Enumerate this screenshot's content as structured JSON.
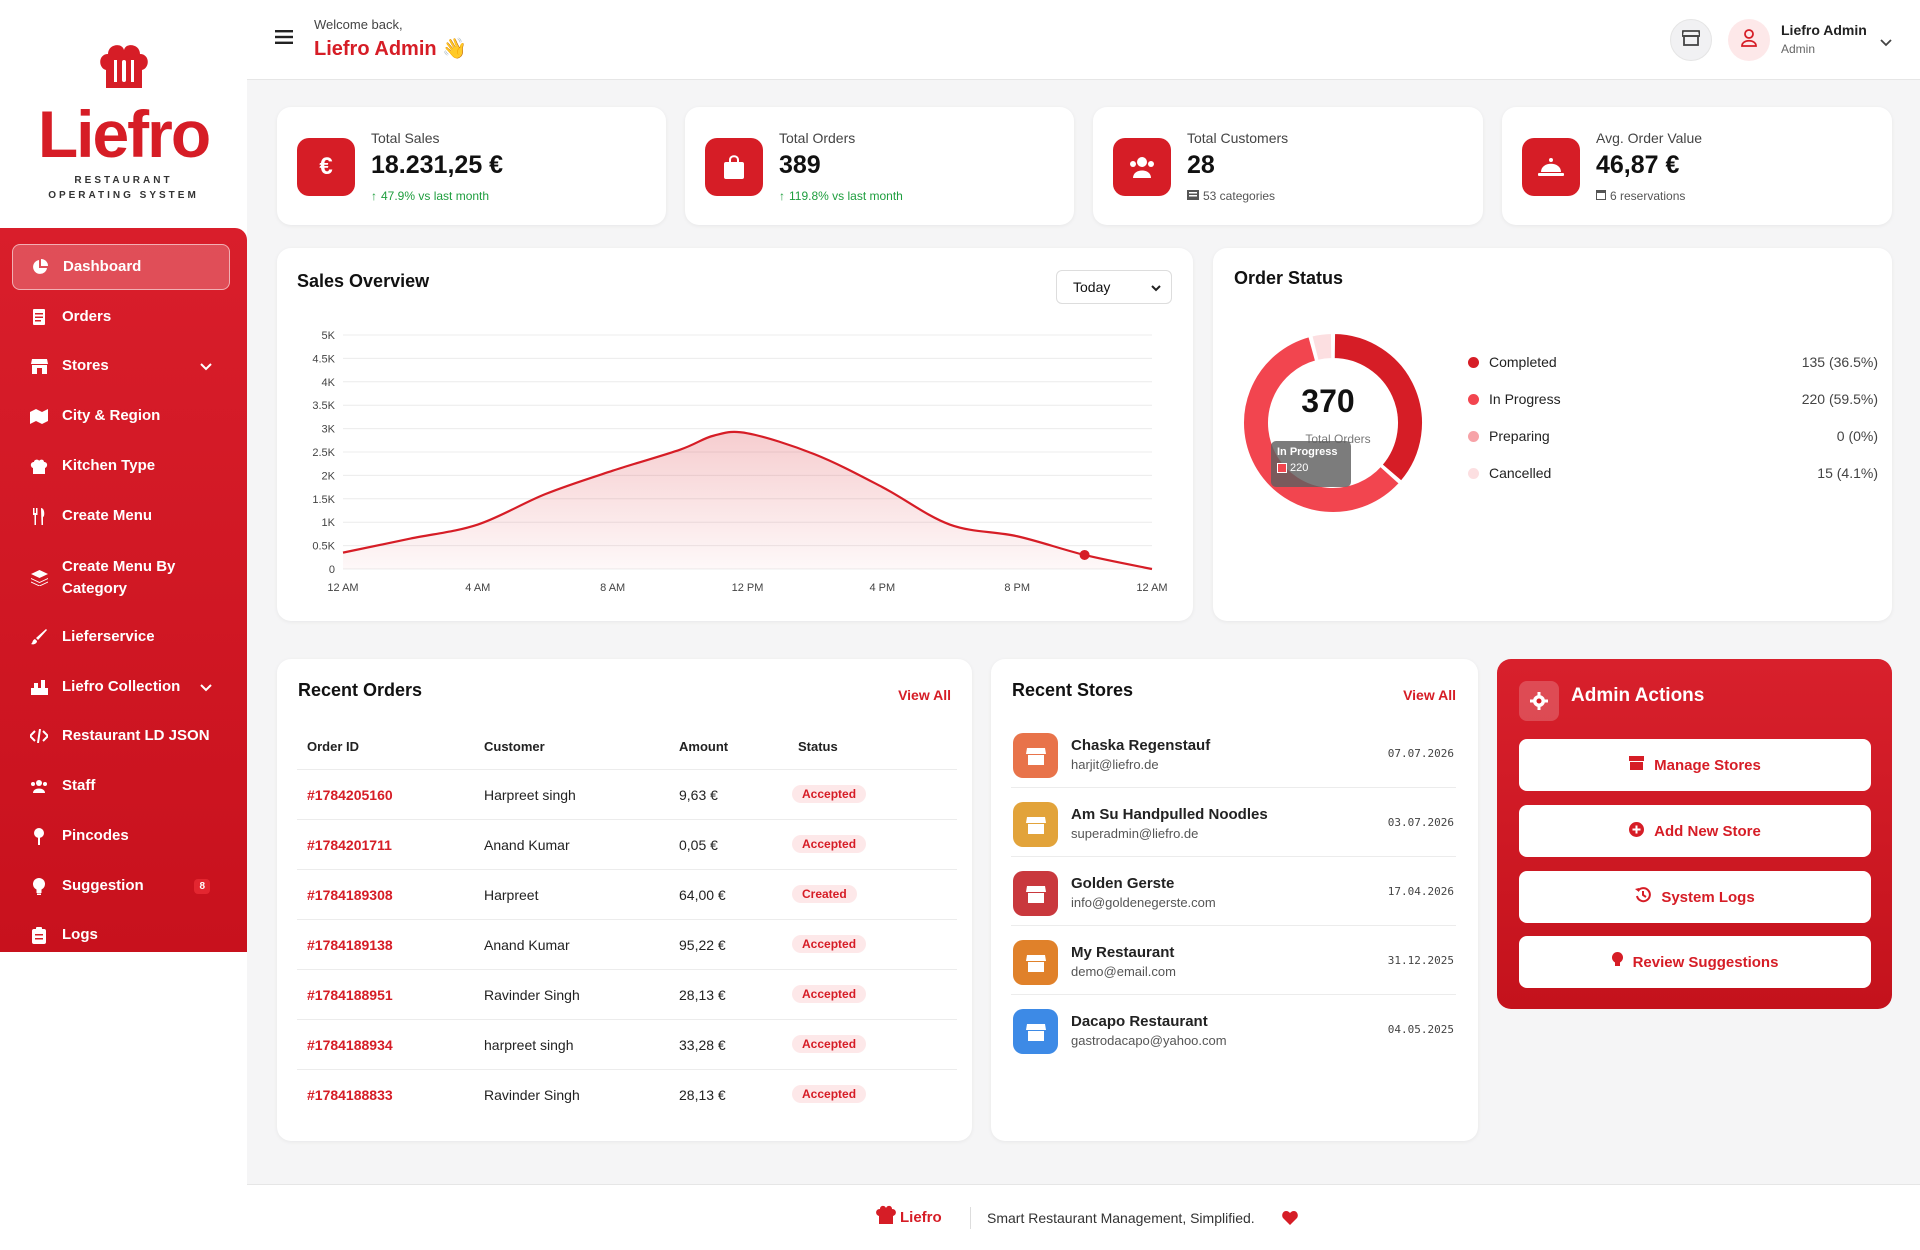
{
  "brand": {
    "name": "Liefro",
    "tagline_line1": "RESTAURANT",
    "tagline_line2": "OPERATING SYSTEM",
    "accent": "#d61d26"
  },
  "sidebar": {
    "items": [
      {
        "label": "Dashboard",
        "icon": "pie-chart-icon",
        "active": true
      },
      {
        "label": "Orders",
        "icon": "receipt-icon"
      },
      {
        "label": "Stores",
        "icon": "store-icon",
        "expandable": true
      },
      {
        "label": "City & Region",
        "icon": "map-icon"
      },
      {
        "label": "Kitchen Type",
        "icon": "chef-hat-icon"
      },
      {
        "label": "Create Menu",
        "icon": "utensils-icon"
      },
      {
        "label": "Create Menu By Category",
        "icon": "layers-icon"
      },
      {
        "label": "Lieferservice",
        "icon": "brush-icon"
      },
      {
        "label": "Liefro Collection",
        "icon": "collection-icon",
        "expandable": true
      },
      {
        "label": "Restaurant LD JSON",
        "icon": "code-icon"
      },
      {
        "label": "Staff",
        "icon": "users-icon"
      },
      {
        "label": "Pincodes",
        "icon": "pin-icon"
      },
      {
        "label": "Suggestion",
        "icon": "bulb-icon",
        "badge": "8"
      },
      {
        "label": "Logs",
        "icon": "clipboard-icon"
      }
    ]
  },
  "header": {
    "welcome": "Welcome back,",
    "name": "Liefro Admin 👋",
    "user_name": "Liefro Admin",
    "user_role": "Admin"
  },
  "stats": [
    {
      "title": "Total Sales",
      "value": "18.231,25 €",
      "sub": "47.9% vs last month",
      "icon": "euro-icon"
    },
    {
      "title": "Total Orders",
      "value": "389",
      "sub": "119.8% vs last month",
      "icon": "bag-icon"
    },
    {
      "title": "Total Customers",
      "value": "28",
      "sub": "53 categories",
      "icon": "users-icon"
    },
    {
      "title": "Avg. Order Value",
      "value": "46,87 €",
      "sub": "6 reservations",
      "icon": "cloche-icon"
    }
  ],
  "sales": {
    "title": "Sales Overview",
    "filter": "Today"
  },
  "chart_data": {
    "type": "area",
    "title": "Sales Overview",
    "y_ticks": [
      "0",
      "0.5K",
      "1K",
      "1.5K",
      "2K",
      "2.5K",
      "3K",
      "3.5K",
      "4K",
      "4.5K",
      "5K"
    ],
    "x_ticks": [
      "12 AM",
      "4 AM",
      "8 AM",
      "12 PM",
      "4 PM",
      "8 PM",
      "12 AM"
    ],
    "ylim": [
      0,
      5000
    ],
    "xlim": [
      0,
      24
    ],
    "series": [
      {
        "x": [
          0,
          2,
          4,
          6,
          8,
          10,
          11,
          12,
          14,
          16,
          18,
          20,
          22,
          24
        ],
        "values": [
          350,
          650,
          950,
          1600,
          2100,
          2550,
          2850,
          2900,
          2450,
          1750,
          950,
          700,
          300,
          0
        ]
      }
    ],
    "highlight_point": {
      "x": 22,
      "y": 300
    },
    "color": "#d61d26",
    "grid": true
  },
  "order_status": {
    "title": "Order Status",
    "total": "370",
    "total_label": "Total Orders",
    "tooltip_title": "In Progress",
    "tooltip_value": "220",
    "items": [
      {
        "name": "Completed",
        "value": "135 (36.5%)",
        "count": 135,
        "color": "#d61d26"
      },
      {
        "name": "In Progress",
        "value": "220 (59.5%)",
        "count": 220,
        "color": "#f2454f"
      },
      {
        "name": "Preparing",
        "value": "0 (0%)",
        "count": 0,
        "color": "#f7a3a8"
      },
      {
        "name": "Cancelled",
        "value": "15 (4.1%)",
        "count": 15,
        "color": "#fcdfe1"
      }
    ]
  },
  "recent_orders": {
    "title": "Recent Orders",
    "view_all": "View All",
    "headers": [
      "Order ID",
      "Customer",
      "Amount",
      "Status"
    ],
    "rows": [
      {
        "id": "#1784205160",
        "customer": "Harpreet singh",
        "amount": "9,63 €",
        "status": "Accepted"
      },
      {
        "id": "#1784201711",
        "customer": "Anand Kumar",
        "amount": "0,05 €",
        "status": "Accepted"
      },
      {
        "id": "#1784189308",
        "customer": "Harpreet",
        "amount": "64,00 €",
        "status": "Created"
      },
      {
        "id": "#1784189138",
        "customer": "Anand Kumar",
        "amount": "95,22 €",
        "status": "Accepted"
      },
      {
        "id": "#1784188951",
        "customer": "Ravinder Singh",
        "amount": "28,13 €",
        "status": "Accepted"
      },
      {
        "id": "#1784188934",
        "customer": "harpreet singh",
        "amount": "33,28 €",
        "status": "Accepted"
      },
      {
        "id": "#1784188833",
        "customer": "Ravinder Singh",
        "amount": "28,13 €",
        "status": "Accepted"
      }
    ]
  },
  "recent_stores": {
    "title": "Recent Stores",
    "view_all": "View All",
    "rows": [
      {
        "name": "Chaska Regenstauf",
        "email": "harjit@liefro.de",
        "date": "07.07.2026",
        "color": "#e8734a"
      },
      {
        "name": "Am Su Handpulled Noodles",
        "email": "superadmin@liefro.de",
        "date": "03.07.2026",
        "color": "#e2a33a"
      },
      {
        "name": "Golden Gerste",
        "email": "info@goldenegerste.com",
        "date": "17.04.2026",
        "color": "#c9383d"
      },
      {
        "name": "My Restaurant",
        "email": "demo@email.com",
        "date": "31.12.2025",
        "color": "#e0812a"
      },
      {
        "name": "Dacapo Restaurant",
        "email": "gastrodacapo@yahoo.com",
        "date": "04.05.2025",
        "color": "#3d8ae6"
      }
    ]
  },
  "admin_actions": {
    "title": "Admin Actions",
    "buttons": [
      {
        "label": "Manage Stores",
        "icon": "store-icon"
      },
      {
        "label": "Add New Store",
        "icon": "plus-circle-icon"
      },
      {
        "label": "System Logs",
        "icon": "history-icon"
      },
      {
        "label": "Review Suggestions",
        "icon": "bulb-icon"
      }
    ]
  },
  "footer": {
    "brand": "Liefro",
    "text": "Smart Restaurant Management, Simplified."
  }
}
